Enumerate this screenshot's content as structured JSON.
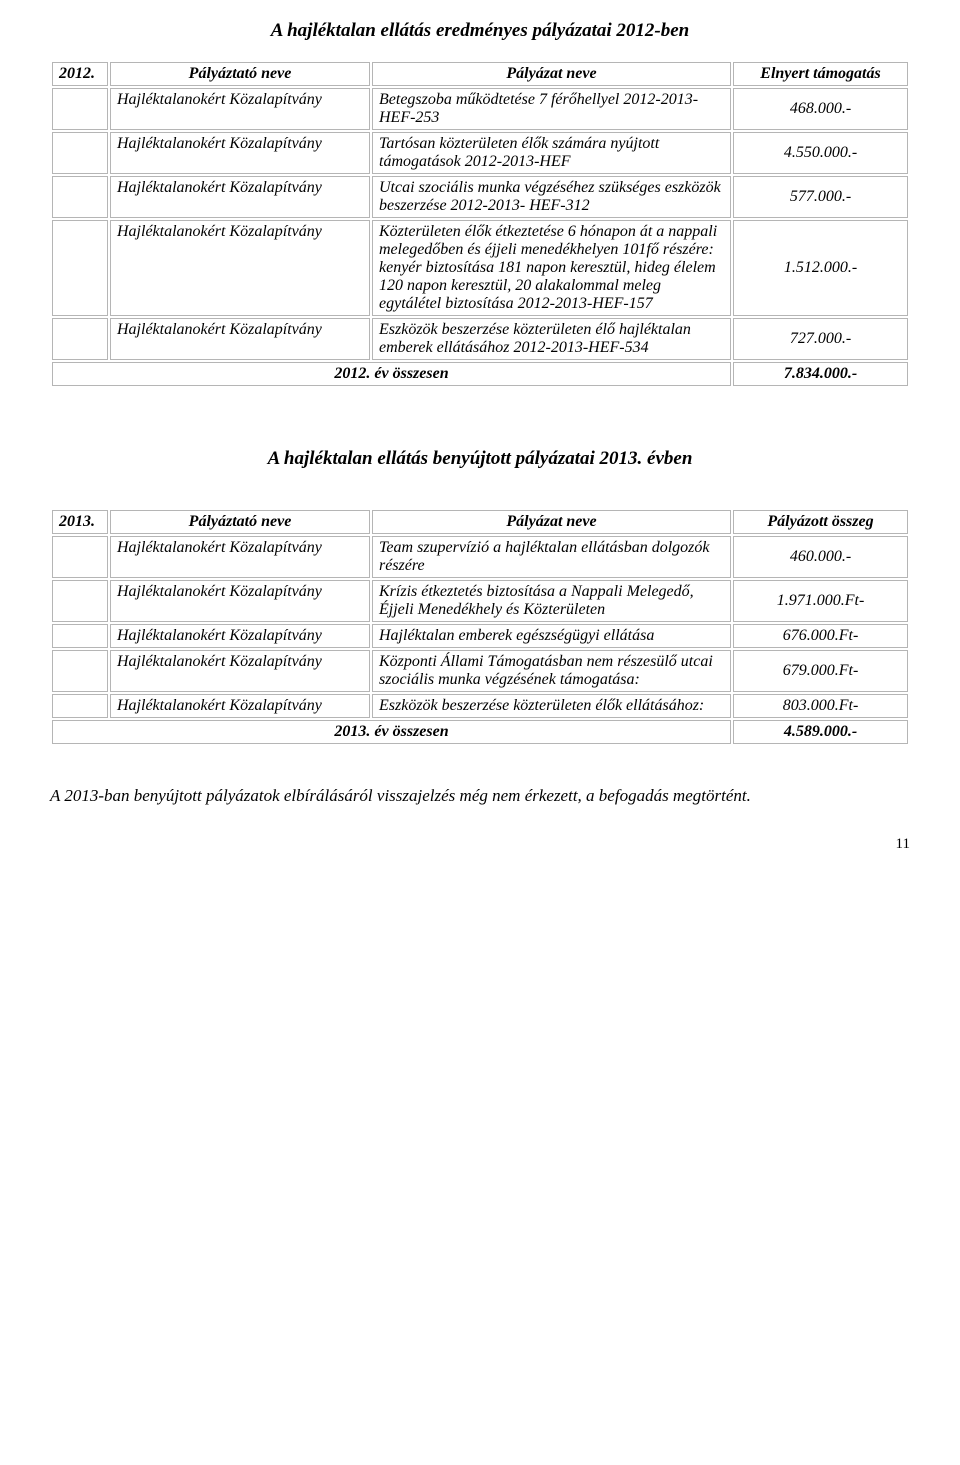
{
  "section1": {
    "title": "A hajléktalan ellátás eredményes pályázatai 2012-ben",
    "header": {
      "year": "2012.",
      "col_org": "Pályáztató neve",
      "col_desc": "Pályázat neve",
      "col_amount": "Elnyert támogatás"
    },
    "rows": [
      {
        "org": "Hajléktalanokért Közalapítvány",
        "desc": "Betegszoba működtetése 7 férőhellyel 2012-2013- HEF-253",
        "amount": "468.000.-"
      },
      {
        "org": "Hajléktalanokért Közalapítvány",
        "desc": "Tartósan közterületen élők számára nyújtott támogatások 2012-2013-HEF",
        "amount": "4.550.000.-"
      },
      {
        "org": "Hajléktalanokért Közalapítvány",
        "desc": "Utcai szociális munka végzéséhez szükséges eszközök beszerzése 2012-2013- HEF-312",
        "amount": "577.000.-"
      },
      {
        "org": "Hajléktalanokért Közalapítvány",
        "desc": "Közterületen élők étkeztetése 6 hónapon át a nappali melegedőben és éjjeli menedékhelyen 101fő részére: kenyér biztosítása 181 napon keresztül, hideg élelem 120 napon keresztül, 20 alakalommal meleg egytálétel biztosítása 2012-2013-HEF-157",
        "amount": "1.512.000.-"
      },
      {
        "org": "Hajléktalanokért Közalapítvány",
        "desc": "Eszközök beszerzése közterületen élő hajléktalan emberek ellátásához 2012-2013-HEF-534",
        "amount": "727.000.-"
      }
    ],
    "total": {
      "label": "2012. év összesen",
      "amount": "7.834.000.-"
    }
  },
  "section2": {
    "title": "A hajléktalan ellátás benyújtott pályázatai 2013. évben",
    "header": {
      "year": "2013.",
      "col_org": "Pályáztató neve",
      "col_desc": "Pályázat neve",
      "col_amount": "Pályázott összeg"
    },
    "rows": [
      {
        "org": "Hajléktalanokért Közalapítvány",
        "desc": "Team szupervízió a hajléktalan ellátásban dolgozók részére",
        "amount": "460.000.-"
      },
      {
        "org": "Hajléktalanokért Közalapítvány",
        "desc": "Krízis étkeztetés biztosítása a Nappali Melegedő, Éjjeli Menedékhely és Közterületen",
        "amount": "1.971.000.Ft-"
      },
      {
        "org": "Hajléktalanokért Közalapítvány",
        "desc": "Hajléktalan emberek egészségügyi ellátása",
        "amount": "676.000.Ft-"
      },
      {
        "org": "Hajléktalanokért Közalapítvány",
        "desc": "Központi Állami Támogatásban nem részesülő utcai szociális munka végzésének támogatása:",
        "amount": "679.000.Ft-"
      },
      {
        "org": "Hajléktalanokért Közalapítvány",
        "desc": "Eszközök beszerzése közterületen élők ellátásához:",
        "amount": "803.000.Ft-"
      }
    ],
    "total": {
      "label": "2013. év összesen",
      "amount": "4.589.000.-"
    }
  },
  "closing_note": "A 2013-ban benyújtott pályázatok elbírálásáról visszajelzés még nem érkezett, a befogadás megtörtént.",
  "page_number": "11",
  "colors": {
    "text": "#000000",
    "background": "#ffffff",
    "border": "#b5b5b5"
  },
  "typography": {
    "body_font": "Times New Roman",
    "title_size_pt": 19,
    "table_size_pt": 16,
    "note_size_pt": 17
  }
}
